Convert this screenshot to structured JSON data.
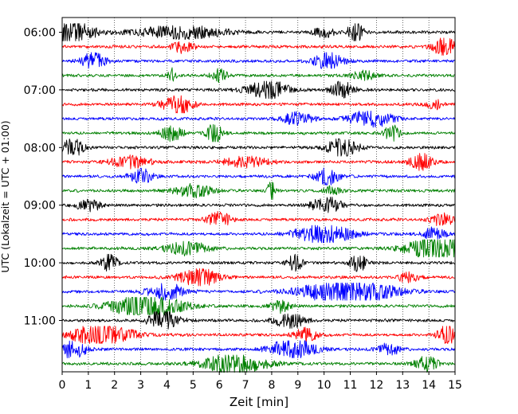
{
  "chart_data": {
    "type": "line",
    "title": "",
    "xlabel": "Zeit  [min]",
    "ylabel": "UTC (Lokalzeit = UTC + 01:00)",
    "xlim": [
      0,
      15
    ],
    "x_ticks": [
      "0",
      "1",
      "2",
      "3",
      "4",
      "5",
      "6",
      "7",
      "8",
      "9",
      "10",
      "11",
      "12",
      "13",
      "14",
      "15"
    ],
    "y_ticks": [
      {
        "label": "06:00",
        "row": 0
      },
      {
        "label": "07:00",
        "row": 4
      },
      {
        "label": "08:00",
        "row": 8
      },
      {
        "label": "09:00",
        "row": 12
      },
      {
        "label": "10:00",
        "row": 16
      },
      {
        "label": "11:00",
        "row": 20
      }
    ],
    "trace_interval_min": 15,
    "row_count": 24,
    "color_cycle": [
      "#000000",
      "#ff0000",
      "#0000ff",
      "#008000"
    ],
    "grid": "vertical dotted",
    "rows": [
      {
        "start": "06:00",
        "bursts": [
          [
            0.3,
            2.0,
            0.6
          ],
          [
            4.5,
            1.0,
            1.2
          ],
          [
            10.0,
            0.8,
            0.3
          ],
          [
            11.2,
            1.8,
            0.2
          ]
        ]
      },
      {
        "start": "06:15",
        "bursts": [
          [
            4.6,
            1.0,
            0.3
          ],
          [
            14.6,
            1.5,
            0.3
          ]
        ]
      },
      {
        "start": "06:30",
        "bursts": [
          [
            1.2,
            1.4,
            0.3
          ],
          [
            10.2,
            1.4,
            0.4
          ]
        ]
      },
      {
        "start": "06:45",
        "bursts": [
          [
            4.2,
            1.2,
            0.1
          ],
          [
            6.0,
            1.0,
            0.2
          ],
          [
            11.5,
            0.8,
            0.3
          ]
        ]
      },
      {
        "start": "07:00",
        "bursts": [
          [
            7.9,
            1.4,
            0.6
          ],
          [
            10.7,
            1.4,
            0.3
          ]
        ]
      },
      {
        "start": "07:15",
        "bursts": [
          [
            4.4,
            1.8,
            0.4
          ],
          [
            14.2,
            0.8,
            0.2
          ]
        ]
      },
      {
        "start": "07:30",
        "bursts": [
          [
            9.0,
            1.0,
            0.4
          ],
          [
            11.8,
            1.3,
            0.6
          ]
        ]
      },
      {
        "start": "07:45",
        "bursts": [
          [
            4.2,
            1.2,
            0.3
          ],
          [
            5.8,
            1.6,
            0.2
          ],
          [
            12.6,
            1.2,
            0.2
          ]
        ]
      },
      {
        "start": "08:00",
        "bursts": [
          [
            0.4,
            1.4,
            0.3
          ],
          [
            10.7,
            1.5,
            0.4
          ]
        ]
      },
      {
        "start": "08:15",
        "bursts": [
          [
            2.6,
            1.0,
            0.5
          ],
          [
            7.0,
            0.8,
            0.6
          ],
          [
            13.7,
            1.3,
            0.3
          ]
        ]
      },
      {
        "start": "08:30",
        "bursts": [
          [
            3.0,
            1.2,
            0.3
          ],
          [
            10.1,
            1.6,
            0.3
          ]
        ]
      },
      {
        "start": "08:45",
        "bursts": [
          [
            5.0,
            1.0,
            0.5
          ],
          [
            8.0,
            2.4,
            0.1
          ],
          [
            10.3,
            0.8,
            0.2
          ]
        ]
      },
      {
        "start": "09:00",
        "bursts": [
          [
            1.0,
            1.2,
            0.3
          ],
          [
            10.1,
            1.3,
            0.4
          ]
        ]
      },
      {
        "start": "09:15",
        "bursts": [
          [
            6.0,
            1.2,
            0.3
          ],
          [
            14.5,
            1.0,
            0.3
          ]
        ]
      },
      {
        "start": "09:30",
        "bursts": [
          [
            10.0,
            1.4,
            0.8
          ],
          [
            14.2,
            1.0,
            0.3
          ]
        ]
      },
      {
        "start": "09:45",
        "bursts": [
          [
            4.8,
            1.0,
            0.6
          ],
          [
            14.4,
            2.2,
            0.8
          ]
        ]
      },
      {
        "start": "10:00",
        "bursts": [
          [
            1.8,
            1.5,
            0.2
          ],
          [
            8.9,
            1.3,
            0.2
          ],
          [
            11.3,
            1.5,
            0.2
          ]
        ]
      },
      {
        "start": "10:15",
        "bursts": [
          [
            5.2,
            1.5,
            0.5
          ],
          [
            13.2,
            0.8,
            0.3
          ]
        ]
      },
      {
        "start": "10:30",
        "bursts": [
          [
            4.0,
            1.2,
            0.5
          ],
          [
            10.9,
            2.0,
            1.2
          ]
        ]
      },
      {
        "start": "10:45",
        "bursts": [
          [
            3.2,
            2.2,
            0.9
          ],
          [
            8.3,
            1.0,
            0.3
          ]
        ]
      },
      {
        "start": "11:00",
        "bursts": [
          [
            3.9,
            1.8,
            0.4
          ],
          [
            8.7,
            1.2,
            0.4
          ]
        ]
      },
      {
        "start": "11:15",
        "bursts": [
          [
            1.5,
            1.8,
            0.8
          ],
          [
            9.3,
            1.2,
            0.3
          ],
          [
            14.8,
            2.0,
            0.3
          ]
        ]
      },
      {
        "start": "11:30",
        "bursts": [
          [
            0.3,
            1.6,
            0.4
          ],
          [
            8.8,
            1.6,
            0.6
          ],
          [
            12.5,
            1.0,
            0.3
          ]
        ]
      },
      {
        "start": "11:45",
        "bursts": [
          [
            6.6,
            1.8,
            0.8
          ],
          [
            13.9,
            1.2,
            0.3
          ]
        ]
      }
    ]
  }
}
